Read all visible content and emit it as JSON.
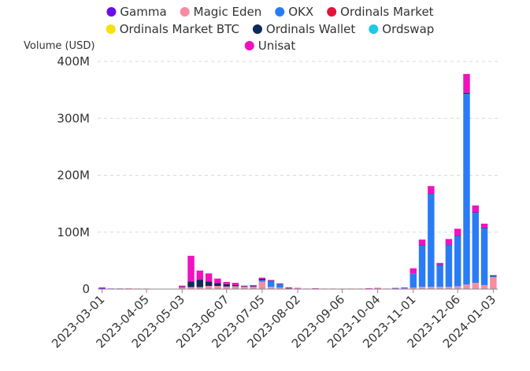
{
  "chart_data": {
    "type": "bar",
    "stacked": true,
    "ylabel": "Volume (USD)",
    "ylim": [
      0,
      400000000
    ],
    "yticks": [
      0,
      100000000,
      200000000,
      300000000,
      400000000
    ],
    "ytick_labels": [
      "0",
      "100M",
      "200M",
      "300M",
      "400M"
    ],
    "xtick_labels": [
      "2023-03-01",
      "2023-04-05",
      "2023-05-03",
      "2023-06-07",
      "2023-07-05",
      "2023-08-02",
      "2023-09-06",
      "2023-10-04",
      "2023-11-01",
      "2023-12-06",
      "2024-01-03"
    ],
    "xtick_indices": [
      0,
      5,
      9,
      14,
      18,
      22,
      27,
      31,
      35,
      40,
      44
    ],
    "legend_position": "top",
    "grid": true,
    "categories": [
      "2023-03-01",
      "2023-03-08",
      "2023-03-15",
      "2023-03-22",
      "2023-03-29",
      "2023-04-05",
      "2023-04-12",
      "2023-04-19",
      "2023-04-26",
      "2023-05-03",
      "2023-05-10",
      "2023-05-17",
      "2023-05-24",
      "2023-05-31",
      "2023-06-07",
      "2023-06-14",
      "2023-06-21",
      "2023-06-28",
      "2023-07-05",
      "2023-07-12",
      "2023-07-19",
      "2023-07-26",
      "2023-08-02",
      "2023-08-09",
      "2023-08-16",
      "2023-08-23",
      "2023-08-30",
      "2023-09-06",
      "2023-09-13",
      "2023-09-20",
      "2023-09-27",
      "2023-10-04",
      "2023-10-11",
      "2023-10-18",
      "2023-10-25",
      "2023-11-01",
      "2023-11-08",
      "2023-11-15",
      "2023-11-22",
      "2023-11-29",
      "2023-12-06",
      "2023-12-13",
      "2023-12-20",
      "2023-12-27",
      "2024-01-03"
    ],
    "series": [
      {
        "name": "Gamma",
        "color": "#6A0DEB",
        "values": [
          2000000,
          1000000,
          1000000,
          500000,
          500000,
          500000,
          500000,
          500000,
          500000,
          1000000,
          500000,
          500000,
          500000,
          500000,
          500000,
          1000000,
          1000000,
          1000000,
          1000000,
          1000000,
          500000,
          500000,
          500000,
          500000,
          500000,
          500000,
          500000,
          500000,
          500000,
          500000,
          500000,
          1000000,
          500000,
          500000,
          500000,
          500000,
          1000000,
          1000000,
          1000000,
          1000000,
          1000000,
          1000000,
          1000000,
          1000000,
          1000000
        ]
      },
      {
        "name": "Magic Eden",
        "color": "#F78CA2",
        "values": [
          0,
          0,
          0,
          1000000,
          500000,
          500000,
          0,
          0,
          0,
          2000000,
          3000000,
          3000000,
          5000000,
          5000000,
          4000000,
          4000000,
          3000000,
          3000000,
          12000000,
          3000000,
          2000000,
          1000000,
          500000,
          500000,
          500000,
          500000,
          500000,
          500000,
          500000,
          500000,
          500000,
          500000,
          500000,
          500000,
          500000,
          2000000,
          3000000,
          3000000,
          3000000,
          3000000,
          4000000,
          7000000,
          10000000,
          6000000,
          20000000
        ]
      },
      {
        "name": "OKX",
        "color": "#2A7CF6",
        "values": [
          0,
          0,
          0,
          0,
          0,
          0,
          0,
          0,
          0,
          0,
          0,
          0,
          0,
          0,
          0,
          0,
          0,
          0,
          3000000,
          10000000,
          6000000,
          0,
          0,
          0,
          0,
          0,
          0,
          0,
          0,
          0,
          0,
          0,
          0,
          500000,
          1000000,
          25000000,
          72000000,
          163000000,
          38000000,
          73000000,
          88000000,
          335000000,
          123000000,
          100000000,
          2000000
        ]
      },
      {
        "name": "Ordinals Market",
        "color": "#E5133A",
        "values": [
          0,
          0,
          0,
          0,
          0,
          0,
          0,
          0,
          0,
          0,
          0,
          0,
          0,
          0,
          0,
          0,
          0,
          0,
          0,
          0,
          0,
          0,
          0,
          0,
          0,
          0,
          0,
          0,
          0,
          0,
          0,
          0,
          0,
          0,
          0,
          0,
          0,
          0,
          0,
          0,
          0,
          0,
          0,
          0,
          0
        ]
      },
      {
        "name": "Ordinals Market BTC",
        "color": "#F5E10C",
        "values": [
          0,
          0,
          0,
          0,
          0,
          0,
          0,
          0,
          0,
          0,
          0,
          0,
          0,
          0,
          0,
          0,
          0,
          0,
          0,
          0,
          0,
          0,
          0,
          0,
          0,
          0,
          0,
          0,
          0,
          0,
          0,
          0,
          0,
          0,
          0,
          0,
          0,
          0,
          0,
          0,
          0,
          0,
          0,
          0,
          0
        ]
      },
      {
        "name": "Ordinals Wallet",
        "color": "#0F2A5C",
        "values": [
          0,
          0,
          0,
          0,
          0,
          0,
          0,
          0,
          0,
          1000000,
          10000000,
          13000000,
          8000000,
          5000000,
          4000000,
          2000000,
          1000000,
          1000000,
          2000000,
          1000000,
          1000000,
          500000,
          0,
          0,
          0,
          0,
          0,
          0,
          0,
          0,
          0,
          0,
          0,
          0,
          0,
          0,
          1000000,
          1000000,
          1000000,
          1000000,
          1000000,
          2000000,
          1000000,
          1000000,
          500000
        ]
      },
      {
        "name": "Ordswap",
        "color": "#1EC8E6",
        "values": [
          0,
          0,
          0,
          0,
          0,
          0,
          0,
          0,
          0,
          0,
          0,
          0,
          0,
          0,
          0,
          0,
          0,
          0,
          0,
          0,
          0,
          0,
          0,
          0,
          0,
          0,
          0,
          0,
          0,
          0,
          0,
          0,
          0,
          0,
          0,
          0,
          0,
          0,
          0,
          0,
          0,
          0,
          0,
          0,
          0
        ]
      },
      {
        "name": "Unisat",
        "color": "#F012BE",
        "values": [
          1000000,
          0,
          0,
          0,
          0,
          0,
          0,
          0,
          0,
          2000000,
          45000000,
          16000000,
          14000000,
          8000000,
          4000000,
          4000000,
          1000000,
          2000000,
          2000000,
          1000000,
          500000,
          1000000,
          1000000,
          0,
          500000,
          0,
          0,
          0,
          0,
          0,
          500000,
          500000,
          0,
          500000,
          1000000,
          9000000,
          10000000,
          13000000,
          3000000,
          10000000,
          12000000,
          33000000,
          12000000,
          7000000,
          1000000
        ]
      }
    ]
  }
}
